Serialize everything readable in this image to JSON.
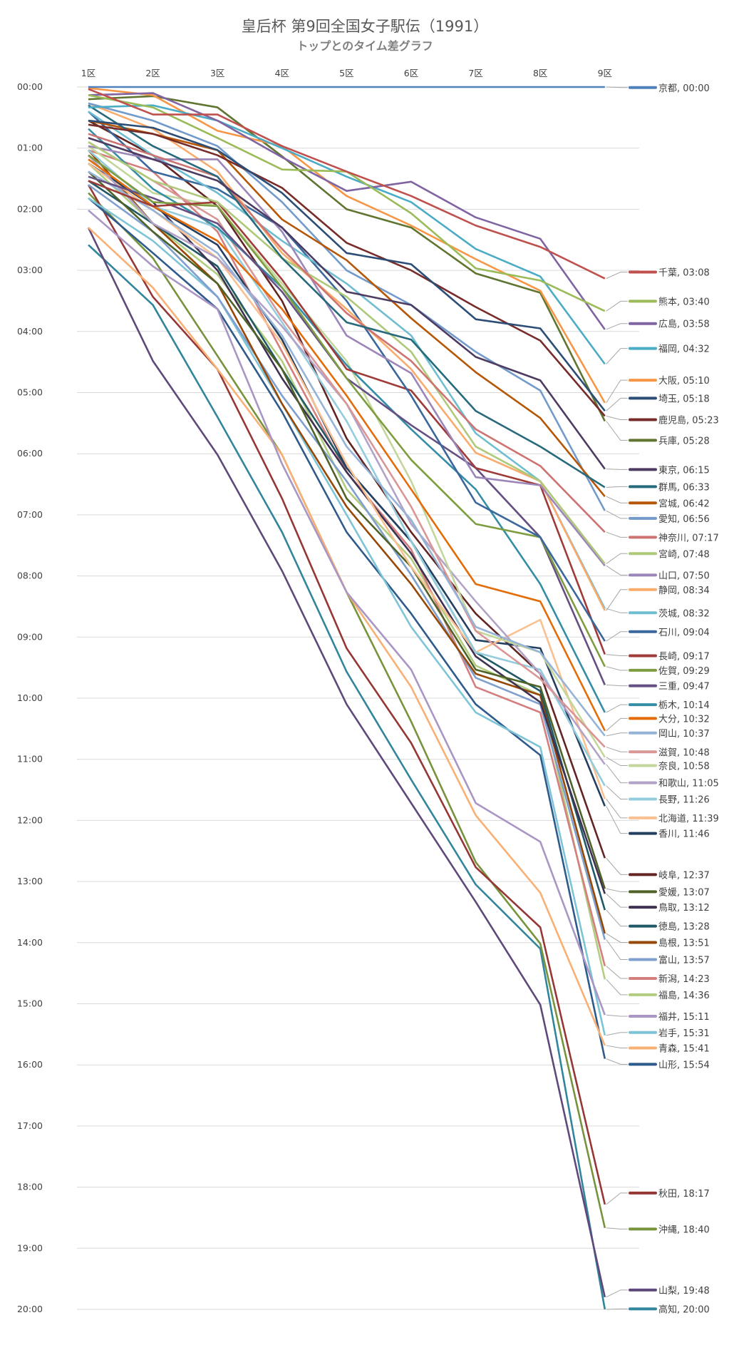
{
  "chart_data": {
    "type": "line",
    "title": "皇后杯 第9回全国女子駅伝（1991）",
    "subtitle": "トップとのタイム差グラフ",
    "categories": [
      "1区",
      "2区",
      "3区",
      "4区",
      "5区",
      "6区",
      "7区",
      "8区",
      "9区"
    ],
    "y_ticks": [
      "00:00",
      "01:00",
      "02:00",
      "03:00",
      "04:00",
      "05:00",
      "06:00",
      "07:00",
      "08:00",
      "09:00",
      "10:00",
      "11:00",
      "12:00",
      "13:00",
      "14:00",
      "15:00",
      "16:00",
      "17:00",
      "18:00",
      "19:00",
      "20:00"
    ],
    "ylim": [
      "00:00",
      "20:00"
    ],
    "y_inverted": true,
    "grid": true,
    "legend": "right, labels at line ends",
    "series": [
      {
        "name": "京都",
        "final": "00:00",
        "color": "#4F81BD",
        "values": [
          "0:00",
          "0:00",
          "0:00",
          "0:00",
          "0:00",
          "0:00",
          "0:00",
          "0:00",
          "0:00"
        ]
      },
      {
        "name": "千葉",
        "final": "03:08",
        "color": "#C0504D",
        "values": [
          "0:02",
          "0:27",
          "0:27",
          "0:58",
          "1:23",
          "1:47",
          "2:16",
          "2:37",
          "3:08"
        ]
      },
      {
        "name": "熊本",
        "final": "03:40",
        "color": "#9BBB59",
        "values": [
          "0:08",
          "0:20",
          "0:50",
          "1:21",
          "1:23",
          "2:04",
          "2:58",
          "3:10",
          "3:40"
        ]
      },
      {
        "name": "広島",
        "final": "03:58",
        "color": "#8064A2",
        "values": [
          "0:08",
          "0:06",
          "0:33",
          "1:09",
          "1:42",
          "1:33",
          "2:08",
          "2:29",
          "3:58"
        ]
      },
      {
        "name": "福岡",
        "final": "04:32",
        "color": "#4BACC6",
        "values": [
          "0:20",
          "0:18",
          "0:33",
          "1:00",
          "1:28",
          "1:53",
          "2:39",
          "3:06",
          "4:32"
        ]
      },
      {
        "name": "大阪",
        "final": "05:10",
        "color": "#F79646",
        "values": [
          "0:01",
          "0:08",
          "0:43",
          "0:58",
          "1:47",
          "2:16",
          "2:49",
          "3:20",
          "5:10"
        ]
      },
      {
        "name": "埼玉",
        "final": "05:18",
        "color": "#2C4D75",
        "values": [
          "0:33",
          "0:40",
          "1:02",
          "1:44",
          "2:43",
          "2:54",
          "3:48",
          "3:57",
          "5:18"
        ]
      },
      {
        "name": "鹿児島",
        "final": "05:23",
        "color": "#772C2A",
        "values": [
          "0:37",
          "0:46",
          "1:07",
          "1:39",
          "2:33",
          "3:00",
          "3:36",
          "4:09",
          "5:23"
        ]
      },
      {
        "name": "兵庫",
        "final": "05:28",
        "color": "#5F7530",
        "values": [
          "0:12",
          "0:09",
          "0:20",
          "1:08",
          "2:00",
          "2:18",
          "3:03",
          "3:22",
          "5:28"
        ]
      },
      {
        "name": "東京",
        "final": "06:15",
        "color": "#4D3B62",
        "values": [
          "0:50",
          "1:11",
          "1:32",
          "2:18",
          "3:21",
          "3:34",
          "4:25",
          "4:48",
          "6:15"
        ]
      },
      {
        "name": "群馬",
        "final": "06:33",
        "color": "#276A7C",
        "values": [
          "0:18",
          "0:58",
          "1:28",
          "2:48",
          "3:51",
          "4:08",
          "5:18",
          "5:53",
          "6:33"
        ]
      },
      {
        "name": "宮城",
        "final": "06:42",
        "color": "#B65708",
        "values": [
          "0:33",
          "0:46",
          "1:02",
          "2:10",
          "2:50",
          "3:47",
          "4:40",
          "5:25",
          "6:42"
        ]
      },
      {
        "name": "愛知",
        "final": "06:56",
        "color": "#729ACA",
        "values": [
          "0:16",
          "0:33",
          "0:58",
          "1:53",
          "3:00",
          "3:34",
          "4:20",
          "4:58",
          "6:56"
        ]
      },
      {
        "name": "神奈川",
        "final": "07:17",
        "color": "#CD7371",
        "values": [
          "0:46",
          "1:07",
          "1:28",
          "2:39",
          "3:42",
          "4:29",
          "5:36",
          "6:12",
          "7:17"
        ]
      },
      {
        "name": "宮崎",
        "final": "07:48",
        "color": "#AFC97A",
        "values": [
          "0:54",
          "1:32",
          "1:53",
          "2:48",
          "3:26",
          "4:20",
          "5:53",
          "6:27",
          "7:48"
        ]
      },
      {
        "name": "山口",
        "final": "07:50",
        "color": "#9C85B8",
        "values": [
          "0:58",
          "1:11",
          "1:11",
          "2:22",
          "4:04",
          "4:41",
          "6:23",
          "6:31",
          "7:50"
        ]
      },
      {
        "name": "静岡",
        "final": "08:34",
        "color": "#F9AB6B",
        "values": [
          "0:16",
          "0:41",
          "1:23",
          "2:43",
          "3:38",
          "4:37",
          "5:59",
          "6:27",
          "8:34"
        ]
      },
      {
        "name": "茨城",
        "final": "08:32",
        "color": "#6FBDD1",
        "values": [
          "0:24",
          "1:07",
          "1:44",
          "2:31",
          "3:13",
          "4:04",
          "5:40",
          "6:27",
          "8:32"
        ]
      },
      {
        "name": "石川",
        "final": "09:04",
        "color": "#3A679C",
        "values": [
          "0:24",
          "1:23",
          "1:40",
          "2:18",
          "3:30",
          "5:03",
          "6:48",
          "7:22",
          "9:04"
        ]
      },
      {
        "name": "長崎",
        "final": "09:17",
        "color": "#9F3B38",
        "values": [
          "1:32",
          "1:57",
          "1:53",
          "3:09",
          "4:37",
          "4:58",
          "6:14",
          "6:31",
          "9:17"
        ]
      },
      {
        "name": "佐賀",
        "final": "09:29",
        "color": "#7E9D40",
        "values": [
          "1:07",
          "1:53",
          "1:57",
          "3:17",
          "4:46",
          "6:06",
          "7:09",
          "7:22",
          "9:29"
        ]
      },
      {
        "name": "三重",
        "final": "09:47",
        "color": "#664F83",
        "values": [
          "1:28",
          "1:49",
          "2:14",
          "3:21",
          "4:46",
          "5:32",
          "6:14",
          "7:22",
          "9:47"
        ]
      },
      {
        "name": "栃木",
        "final": "10:14",
        "color": "#358EA6",
        "values": [
          "0:41",
          "1:40",
          "2:18",
          "3:17",
          "4:33",
          "5:36",
          "6:35",
          "8:08",
          "10:14"
        ]
      },
      {
        "name": "大分",
        "final": "10:32",
        "color": "#E36C09",
        "values": [
          "1:11",
          "1:57",
          "2:31",
          "3:38",
          "5:03",
          "6:35",
          "8:08",
          "8:25",
          "10:32"
        ]
      },
      {
        "name": "岡山",
        "final": "10:37",
        "color": "#95B3D7",
        "values": [
          "1:23",
          "2:01",
          "2:43",
          "4:04",
          "5:53",
          "7:05",
          "8:50",
          "9:15",
          "10:37"
        ]
      },
      {
        "name": "滋賀",
        "final": "10:48",
        "color": "#D99694",
        "values": [
          "0:54",
          "1:32",
          "2:10",
          "3:47",
          "5:11",
          "6:52",
          "8:54",
          "9:41",
          "10:48"
        ]
      },
      {
        "name": "奈良",
        "final": "10:58",
        "color": "#C3D69B",
        "values": [
          "0:58",
          "1:44",
          "1:57",
          "3:13",
          "4:29",
          "6:27",
          "8:54",
          "9:15",
          "10:58"
        ]
      },
      {
        "name": "和歌山",
        "final": "11:05",
        "color": "#B2A2C7",
        "values": [
          "1:07",
          "2:14",
          "2:48",
          "3:55",
          "5:11",
          "7:09",
          "8:25",
          "9:36",
          "11:05"
        ]
      },
      {
        "name": "長野",
        "final": "11:26",
        "color": "#93CDDD",
        "values": [
          "1:02",
          "1:57",
          "2:18",
          "3:51",
          "5:28",
          "7:26",
          "9:15",
          "9:32",
          "11:26"
        ]
      },
      {
        "name": "北海道",
        "final": "11:39",
        "color": "#FAC090",
        "values": [
          "1:15",
          "2:01",
          "2:48",
          "4:12",
          "6:10",
          "7:51",
          "9:15",
          "8:43",
          "11:39"
        ]
      },
      {
        "name": "香川",
        "final": "11:46",
        "color": "#243F60",
        "values": [
          "1:15",
          "1:57",
          "2:35",
          "4:08",
          "6:14",
          "7:26",
          "9:03",
          "9:11",
          "11:46"
        ]
      },
      {
        "name": "岐阜",
        "final": "12:37",
        "color": "#632523",
        "values": [
          "0:33",
          "1:07",
          "1:57",
          "3:30",
          "5:45",
          "7:17",
          "8:37",
          "9:36",
          "12:37"
        ]
      },
      {
        "name": "愛媛",
        "final": "13:07",
        "color": "#4F6228",
        "values": [
          "1:23",
          "2:22",
          "3:13",
          "4:37",
          "6:44",
          "7:51",
          "9:32",
          "9:49",
          "13:07"
        ]
      },
      {
        "name": "鳥取",
        "final": "13:12",
        "color": "#3F3151",
        "values": [
          "1:07",
          "1:53",
          "3:00",
          "4:46",
          "6:18",
          "7:38",
          "9:19",
          "10:04",
          "13:12"
        ]
      },
      {
        "name": "徳島",
        "final": "13:28",
        "color": "#215967",
        "values": [
          "1:32",
          "2:14",
          "2:56",
          "4:37",
          "6:14",
          "7:26",
          "9:15",
          "9:53",
          "13:28"
        ]
      },
      {
        "name": "島根",
        "final": "13:51",
        "color": "#974806",
        "values": [
          "1:02",
          "2:14",
          "3:13",
          "5:11",
          "6:52",
          "8:08",
          "9:36",
          "9:57",
          "13:51"
        ]
      },
      {
        "name": "富山",
        "final": "13:57",
        "color": "#7F9FCF",
        "values": [
          "1:36",
          "2:22",
          "3:26",
          "5:03",
          "6:27",
          "7:59",
          "9:40",
          "10:06",
          "13:57"
        ]
      },
      {
        "name": "新潟",
        "final": "14:23",
        "color": "#D47F7D",
        "values": [
          "1:02",
          "1:23",
          "2:22",
          "4:20",
          "6:18",
          "7:34",
          "9:49",
          "10:14",
          "14:23"
        ]
      },
      {
        "name": "福島",
        "final": "14:36",
        "color": "#B3CD80",
        "values": [
          "1:15",
          "2:14",
          "3:04",
          "4:29",
          "6:35",
          "7:43",
          "9:28",
          "9:57",
          "14:36"
        ]
      },
      {
        "name": "福井",
        "final": "15:11",
        "color": "#A996C4",
        "values": [
          "2:01",
          "2:56",
          "3:38",
          "6:10",
          "8:16",
          "9:32",
          "11:43",
          "12:21",
          "15:11"
        ]
      },
      {
        "name": "岩手",
        "final": "15:31",
        "color": "#7DC4D6",
        "values": [
          "1:49",
          "2:31",
          "3:26",
          "5:11",
          "7:00",
          "8:50",
          "10:14",
          "10:48",
          "15:31"
        ]
      },
      {
        "name": "青森",
        "final": "15:41",
        "color": "#F9B074",
        "values": [
          "2:18",
          "3:17",
          "4:37",
          "6:01",
          "8:16",
          "9:49",
          "11:55",
          "13:11",
          "15:41"
        ]
      },
      {
        "name": "山形",
        "final": "15:54",
        "color": "#2E5A8C",
        "values": [
          "1:49",
          "2:43",
          "3:38",
          "5:19",
          "7:17",
          "8:37",
          "10:06",
          "10:56",
          "15:54"
        ]
      },
      {
        "name": "秋田",
        "final": "18:17",
        "color": "#953735",
        "values": [
          "1:36",
          "3:26",
          "4:37",
          "6:44",
          "9:11",
          "10:44",
          "12:46",
          "13:45",
          "18:17"
        ]
      },
      {
        "name": "沖縄",
        "final": "18:40",
        "color": "#77933C",
        "values": [
          "1:44",
          "2:48",
          "4:24",
          "6:01",
          "8:16",
          "10:23",
          "12:41",
          "14:01",
          "18:40"
        ]
      },
      {
        "name": "山梨",
        "final": "19:48",
        "color": "#5F497A",
        "values": [
          "2:18",
          "4:29",
          "6:01",
          "7:55",
          "10:06",
          "11:43",
          "13:20",
          "15:01",
          "19:48"
        ]
      },
      {
        "name": "高知",
        "final": "20:00",
        "color": "#31859C",
        "values": [
          "2:35",
          "3:34",
          "5:24",
          "7:17",
          "9:34",
          "11:20",
          "13:03",
          "14:06",
          "20:00"
        ]
      }
    ]
  }
}
